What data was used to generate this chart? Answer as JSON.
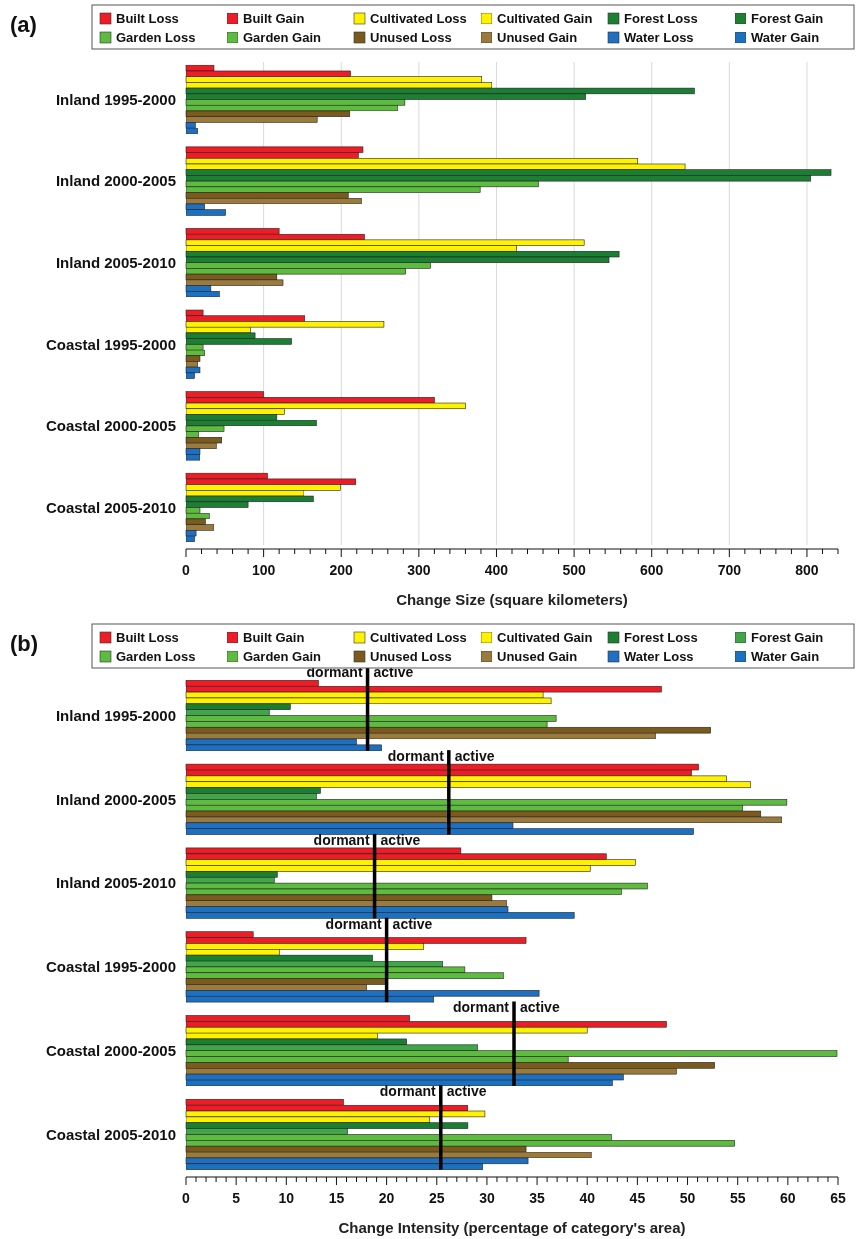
{
  "chart_data": [
    {
      "type": "bar",
      "orientation": "horizontal",
      "title": "(a)",
      "xlabel": "Change Size (square kilometers)",
      "legend": "top",
      "grid": "x",
      "categories": [
        "Inland 1995-2000",
        "Inland 2000-2005",
        "Inland 2005-2010",
        "Coastal 1995-2000",
        "Coastal 2000-2005",
        "Coastal 2005-2010"
      ],
      "xlim": [
        0,
        840
      ],
      "xticks": [
        0,
        {
          "value": 20,
          "label": null
        },
        {
          "value": 40,
          "label": null
        },
        {
          "value": 60,
          "label": null
        },
        {
          "value": 80,
          "label": null
        },
        100,
        {
          "value": 120,
          "label": null
        },
        {
          "value": 140,
          "label": null
        },
        {
          "value": 160,
          "label": null
        },
        {
          "value": 180,
          "label": null
        },
        200,
        {
          "value": 220,
          "label": null
        },
        {
          "value": 240,
          "label": null
        },
        {
          "value": 260,
          "label": null
        },
        {
          "value": 280,
          "label": null
        },
        300,
        {
          "value": 320,
          "label": null
        },
        {
          "value": 340,
          "label": null
        },
        {
          "value": 360,
          "label": null
        },
        {
          "value": 380,
          "label": null
        },
        400,
        {
          "value": 420,
          "label": null
        },
        {
          "value": 440,
          "label": null
        },
        {
          "value": 460,
          "label": null
        },
        {
          "value": 480,
          "label": null
        },
        500,
        {
          "value": 520,
          "label": null
        },
        {
          "value": 540,
          "label": null
        },
        {
          "value": 560,
          "label": null
        },
        {
          "value": 580,
          "label": null
        },
        600,
        {
          "value": 620,
          "label": null
        },
        {
          "value": 640,
          "label": null
        },
        {
          "value": 660,
          "label": null
        },
        {
          "value": 680,
          "label": null
        },
        700,
        {
          "value": 720,
          "label": null
        },
        {
          "value": 740,
          "label": null
        },
        {
          "value": 760,
          "label": null
        },
        {
          "value": 780,
          "label": null
        },
        800,
        {
          "value": 820,
          "label": null
        },
        {
          "value": 840,
          "label": null
        }
      ],
      "series": [
        {
          "name": "Built Loss",
          "color": "#ee1c25",
          "values": [
            36,
            228,
            120,
            22,
            100,
            105
          ]
        },
        {
          "name": "Built Gain",
          "color": "#ee1c25",
          "values": [
            212,
            222,
            230,
            153,
            320,
            219
          ]
        },
        {
          "name": "Cultivated Loss",
          "color": "#fff200",
          "values": [
            381,
            582,
            513,
            255,
            360,
            199
          ]
        },
        {
          "name": "Cultivated Gain",
          "color": "#fff200",
          "values": [
            394,
            643,
            426,
            83,
            127,
            152
          ]
        },
        {
          "name": "Forest Loss",
          "color": "#1a7f32",
          "values": [
            655,
            831,
            558,
            89,
            117,
            164
          ]
        },
        {
          "name": "Forest Gain",
          "color": "#1a7f32",
          "values": [
            515,
            805,
            545,
            136,
            168,
            80
          ]
        },
        {
          "name": "Garden Loss",
          "color": "#5dbb3f",
          "values": [
            282,
            454,
            315,
            22,
            49,
            18
          ]
        },
        {
          "name": "Garden Gain",
          "color": "#5dbb3f",
          "values": [
            273,
            379,
            283,
            24,
            16,
            30
          ]
        },
        {
          "name": "Unused Loss",
          "color": "#7b5a1e",
          "values": [
            211,
            209,
            117,
            18,
            46,
            25
          ]
        },
        {
          "name": "Unused Gain",
          "color": "#9a7a3c",
          "values": [
            169,
            226,
            125,
            15,
            39,
            36
          ]
        },
        {
          "name": "Water Loss",
          "color": "#1f70c1",
          "values": [
            12,
            24,
            32,
            18,
            18,
            13
          ]
        },
        {
          "name": "Water Gain",
          "color": "#1f70c1",
          "values": [
            15,
            51,
            43,
            11,
            18,
            11
          ]
        }
      ]
    },
    {
      "type": "bar",
      "orientation": "horizontal",
      "title": "(b)",
      "xlabel": "Change Intensity (percentage of category's area)",
      "legend": "top",
      "categories": [
        "Inland 1995-2000",
        "Inland 2000-2005",
        "Inland 2005-2010",
        "Coastal 1995-2000",
        "Coastal 2000-2005",
        "Coastal 2005-2010"
      ],
      "xlim": [
        0,
        65
      ],
      "xticks": [
        0,
        {
          "value": 1,
          "label": null
        },
        {
          "value": 2,
          "label": null
        },
        {
          "value": 3,
          "label": null
        },
        {
          "value": 4,
          "label": null
        },
        5,
        {
          "value": 6,
          "label": null
        },
        {
          "value": 7,
          "label": null
        },
        {
          "value": 8,
          "label": null
        },
        {
          "value": 9,
          "label": null
        },
        10,
        {
          "value": 11,
          "label": null
        },
        {
          "value": 12,
          "label": null
        },
        {
          "value": 13,
          "label": null
        },
        {
          "value": 14,
          "label": null
        },
        15,
        {
          "value": 16,
          "label": null
        },
        {
          "value": 17,
          "label": null
        },
        {
          "value": 18,
          "label": null
        },
        {
          "value": 19,
          "label": null
        },
        20,
        {
          "value": 21,
          "label": null
        },
        {
          "value": 22,
          "label": null
        },
        {
          "value": 23,
          "label": null
        },
        {
          "value": 24,
          "label": null
        },
        25,
        {
          "value": 26,
          "label": null
        },
        {
          "value": 27,
          "label": null
        },
        {
          "value": 28,
          "label": null
        },
        {
          "value": 29,
          "label": null
        },
        30,
        {
          "value": 31,
          "label": null
        },
        {
          "value": 32,
          "label": null
        },
        {
          "value": 33,
          "label": null
        },
        {
          "value": 34,
          "label": null
        },
        35,
        {
          "value": 36,
          "label": null
        },
        {
          "value": 37,
          "label": null
        },
        {
          "value": 38,
          "label": null
        },
        {
          "value": 39,
          "label": null
        },
        40,
        {
          "value": 41,
          "label": null
        },
        {
          "value": 42,
          "label": null
        },
        {
          "value": 43,
          "label": null
        },
        {
          "value": 44,
          "label": null
        },
        45,
        {
          "value": 46,
          "label": null
        },
        {
          "value": 47,
          "label": null
        },
        {
          "value": 48,
          "label": null
        },
        {
          "value": 49,
          "label": null
        },
        50,
        {
          "value": 51,
          "label": null
        },
        {
          "value": 52,
          "label": null
        },
        {
          "value": 53,
          "label": null
        },
        {
          "value": 54,
          "label": null
        },
        55,
        {
          "value": 56,
          "label": null
        },
        {
          "value": 57,
          "label": null
        },
        {
          "value": 58,
          "label": null
        },
        {
          "value": 59,
          "label": null
        },
        60,
        {
          "value": 61,
          "label": null
        },
        {
          "value": 62,
          "label": null
        },
        {
          "value": 63,
          "label": null
        },
        {
          "value": 64,
          "label": null
        },
        65
      ],
      "series": [
        {
          "name": "Built Loss",
          "color": "#ee1c25",
          "values": [
            13.2,
            51.1,
            27.4,
            6.7,
            22.3,
            15.7
          ]
        },
        {
          "name": "Built Gain",
          "color": "#ee1c25",
          "values": [
            47.4,
            50.4,
            41.9,
            33.9,
            47.9,
            28.1
          ]
        },
        {
          "name": "Cultivated Loss",
          "color": "#fff200",
          "values": [
            35.6,
            53.9,
            44.8,
            23.7,
            40.0,
            29.8
          ]
        },
        {
          "name": "Cultivated Gain",
          "color": "#fff200",
          "values": [
            36.4,
            56.3,
            40.3,
            9.3,
            19.1,
            24.3
          ]
        },
        {
          "name": "Forest Loss",
          "color": "#1a7f32",
          "values": [
            10.4,
            13.4,
            9.1,
            18.6,
            22.0,
            28.1
          ]
        },
        {
          "name": "Forest Gain",
          "color": "#3fa648",
          "values": [
            8.3,
            13.0,
            8.8,
            25.6,
            29.1,
            16.1
          ]
        },
        {
          "name": "Garden Loss",
          "color": "#5dbb3f",
          "values": [
            36.9,
            59.9,
            46.0,
            27.8,
            64.9,
            42.4
          ]
        },
        {
          "name": "Garden Gain",
          "color": "#5dbb3f",
          "values": [
            36.0,
            55.5,
            43.4,
            31.7,
            38.1,
            54.7
          ]
        },
        {
          "name": "Unused Loss",
          "color": "#7b5a1e",
          "values": [
            52.3,
            57.3,
            30.5,
            19.9,
            52.7,
            33.9
          ]
        },
        {
          "name": "Unused Gain",
          "color": "#9a7a3c",
          "values": [
            46.8,
            59.4,
            32.0,
            18.0,
            48.9,
            40.4
          ]
        },
        {
          "name": "Water Loss",
          "color": "#1f70c1",
          "values": [
            17.0,
            32.6,
            32.1,
            35.2,
            43.6,
            34.1
          ]
        },
        {
          "name": "Water Gain",
          "color": "#1f70c1",
          "values": [
            19.5,
            50.6,
            38.7,
            24.7,
            42.5,
            29.6
          ]
        }
      ],
      "ref_lines": [
        {
          "axis": "x",
          "value": 18.1,
          "color": "#000000"
        },
        {
          "axis": "x",
          "value": 26.2,
          "color": "#000000"
        },
        {
          "axis": "x",
          "value": 18.8,
          "color": "#000000"
        },
        {
          "axis": "x",
          "value": 20.0,
          "color": "#000000"
        },
        {
          "axis": "x",
          "value": 32.7,
          "color": "#000000"
        },
        {
          "axis": "x",
          "value": 25.4,
          "color": "#000000"
        }
      ],
      "annotations": [
        {
          "text": "dormant",
          "x": 18.1,
          "y": "Inland 1995-2000"
        },
        {
          "text": "active",
          "x": 18.1,
          "y": "Inland 1995-2000"
        },
        {
          "text": "dormant",
          "x": 26.2,
          "y": "Inland 2000-2005"
        },
        {
          "text": "active",
          "x": 26.2,
          "y": "Inland 2000-2005"
        },
        {
          "text": "dormant",
          "x": 18.8,
          "y": "Inland 2005-2010"
        },
        {
          "text": "active",
          "x": 18.8,
          "y": "Inland 2005-2010"
        },
        {
          "text": "dormant",
          "x": 20.0,
          "y": "Coastal 1995-2000"
        },
        {
          "text": "active",
          "x": 20.0,
          "y": "Coastal 1995-2000"
        },
        {
          "text": "dormant",
          "x": 32.7,
          "y": "Coastal 2000-2005"
        },
        {
          "text": "active",
          "x": 32.7,
          "y": "Coastal 2000-2005"
        },
        {
          "text": "dormant",
          "x": 25.4,
          "y": "Coastal 2005-2010"
        },
        {
          "text": "active",
          "x": 25.4,
          "y": "Coastal 2005-2010"
        }
      ]
    }
  ]
}
